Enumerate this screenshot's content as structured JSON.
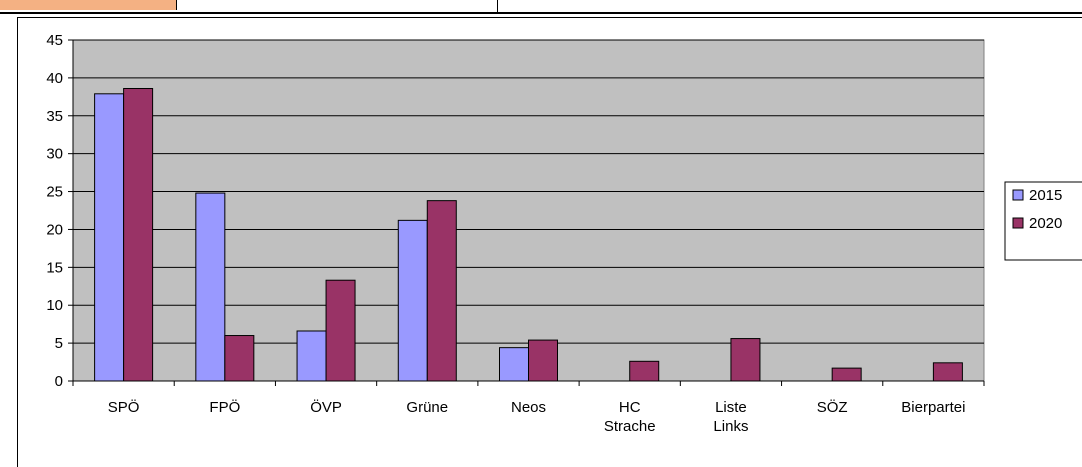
{
  "chart_data": {
    "type": "bar",
    "title": "",
    "xlabel": "",
    "ylabel": "",
    "categories": [
      "SPÖ",
      "FPÖ",
      "ÖVP",
      "Grüne",
      "Neos",
      "HC Strache",
      "Liste Links",
      "SÖZ",
      "Bierpartei"
    ],
    "category_lines": [
      [
        "SPÖ"
      ],
      [
        "FPÖ"
      ],
      [
        "ÖVP"
      ],
      [
        "Grüne"
      ],
      [
        "Neos"
      ],
      [
        "HC",
        "Strache"
      ],
      [
        "Liste",
        "Links"
      ],
      [
        "SÖZ"
      ],
      [
        "Bierpartei"
      ]
    ],
    "series": [
      {
        "name": "2015",
        "color": "#9999ff",
        "values": [
          37.9,
          24.8,
          6.6,
          21.2,
          4.4,
          0,
          0,
          0,
          0
        ]
      },
      {
        "name": "2020",
        "color": "#993366",
        "values": [
          38.6,
          6.0,
          13.3,
          23.8,
          5.4,
          2.6,
          5.6,
          1.7,
          2.4
        ]
      }
    ],
    "ylim": [
      0,
      45
    ],
    "yticks": [
      0,
      5,
      10,
      15,
      20,
      25,
      30,
      35,
      40,
      45
    ],
    "grid": true,
    "plot_background": "#c0c0c0",
    "legend": "right"
  }
}
